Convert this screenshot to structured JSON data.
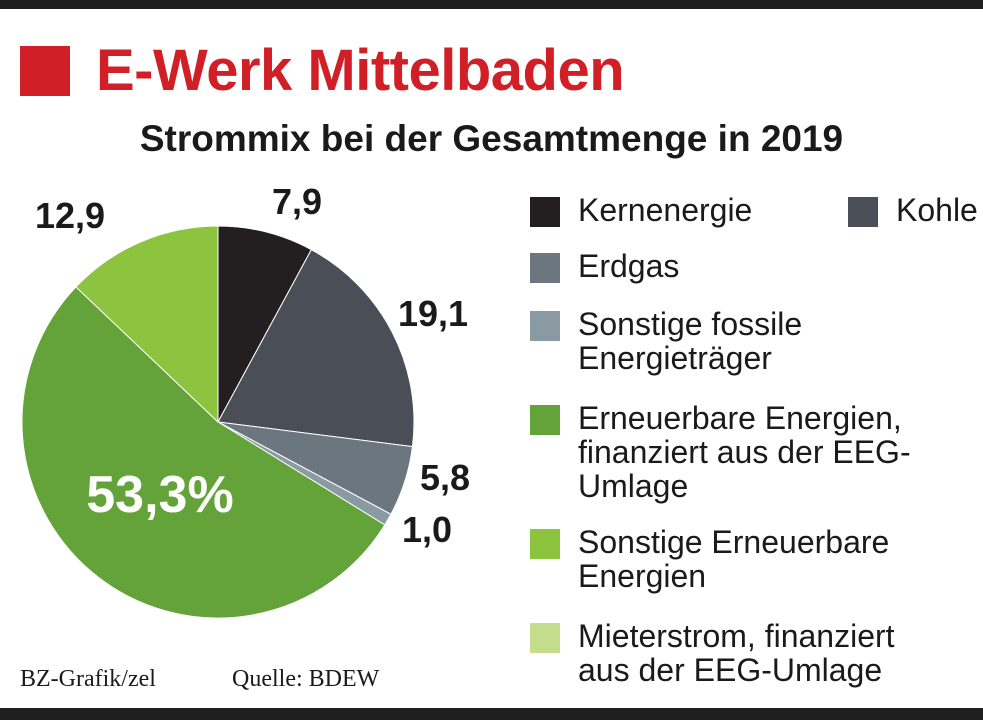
{
  "brand": "E-Werk Mittelbaden",
  "footer": {
    "credit": "BZ-Grafik/zel",
    "source": "Quelle: BDEW"
  },
  "chart_data": {
    "type": "pie",
    "title": "Strommix bei der Gesamtmenge in 2019",
    "slices": [
      {
        "name": "Kernenergie",
        "value": 7.9,
        "label": "7,9",
        "color": "#231f20"
      },
      {
        "name": "Kohle",
        "value": 19.1,
        "label": "19,1",
        "color": "#4a4f57"
      },
      {
        "name": "Erdgas",
        "value": 5.8,
        "label": "5,8",
        "color": "#6b767f"
      },
      {
        "name": "Sonstige fossile Energieträger",
        "value": 1.0,
        "label": "1,0",
        "color": "#8a9aa3"
      },
      {
        "name": "Erneuerbare Energien, finanziert aus der EEG-Umlage",
        "value": 53.3,
        "label": "53,3%",
        "color": "#64a33a"
      },
      {
        "name": "Sonstige Erneuerbare Energien",
        "value": 12.9,
        "label": "12,9",
        "color": "#8cc43f"
      },
      {
        "name": "Mieterstrom, finanziert aus der EEG-Umlage",
        "value": 0.0,
        "label": "",
        "color": "#c3dd8c"
      }
    ],
    "legend": [
      {
        "lines": [
          "Kernenergie"
        ],
        "color": "#231f20"
      },
      {
        "lines": [
          "Kohle"
        ],
        "color": "#4a4f57"
      },
      {
        "lines": [
          "Erdgas"
        ],
        "color": "#6b767f"
      },
      {
        "lines": [
          "Sonstige fossile",
          "Energieträger"
        ],
        "color": "#8a9aa3"
      },
      {
        "lines": [
          "Erneuerbare Energien,",
          "finanziert aus der EEG-",
          "Umlage"
        ],
        "color": "#64a33a"
      },
      {
        "lines": [
          "Sonstige Erneuerbare",
          "Energien"
        ],
        "color": "#8cc43f"
      },
      {
        "lines": [
          "Mieterstrom, finanziert",
          "aus der EEG-Umlage"
        ],
        "color": "#c3dd8c"
      }
    ],
    "legend_placement": "right"
  }
}
